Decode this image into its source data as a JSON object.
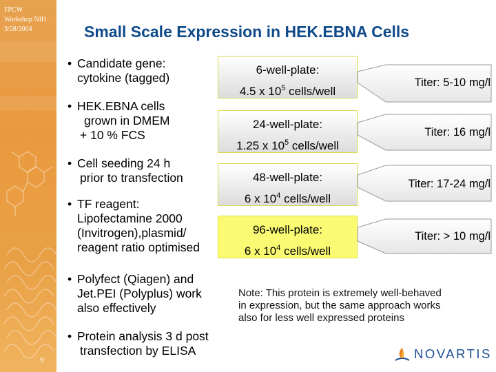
{
  "sidebar": {
    "lines": [
      "FPCW",
      "Workshop NIH",
      "3/28/2004"
    ],
    "page_number": "9"
  },
  "title": "Small Scale Expression in HEK.EBNA Cells",
  "bullets": [
    {
      "lines": [
        "Candidate gene:",
        "cytokine (tagged)"
      ]
    },
    {
      "lines": [
        "HEK.EBNA cells",
        "grown in DMEM",
        "+ 10 % FCS"
      ]
    },
    {
      "lines": [
        "Cell seeding 24 h",
        "prior to transfection"
      ]
    },
    {
      "lines": [
        "TF reagent:",
        "Lipofectamine 2000",
        "(Invitrogen),plasmid/",
        "reagent ratio optimised"
      ]
    },
    {
      "lines": [
        "Polyfect (Qiagen) and",
        "Jet.PEI (Polyplus) work",
        "also effectively"
      ]
    },
    {
      "lines": [
        "Protein analysis 3 d post",
        "transfection by ELISA"
      ]
    }
  ],
  "bullet_glyph": "•",
  "plates": [
    {
      "name": "6-well-plate:",
      "cells_base": "4.5 x 10",
      "cells_exp": "5",
      "cells_unit": " cells/well",
      "titer": "Titer: 5-10 mg/l",
      "style": "gray"
    },
    {
      "name": "24-well-plate:",
      "cells_base": "1.25 x 10",
      "cells_exp": "5",
      "cells_unit": " cells/well",
      "titer": "Titer: 16 mg/l",
      "style": "gray"
    },
    {
      "name": "48-well-plate:",
      "cells_base": "6 x 10",
      "cells_exp": "4",
      "cells_unit": "  cells/well",
      "titer": "Titer: 17-24 mg/l",
      "style": "gray"
    },
    {
      "name": "96-well-plate:",
      "cells_base": "6 x 10",
      "cells_exp": "4",
      "cells_unit": "  cells/well",
      "titer": "Titer: > 10 mg/l",
      "style": "yellow"
    }
  ],
  "note": {
    "lines": [
      "Note: This protein is extremely well-behaved",
      "in expression, but the same approach works",
      "also for less well expressed proteins"
    ]
  },
  "logo": {
    "text": "NOVARTIS",
    "icon": "novartis-flame-icon"
  },
  "colors": {
    "title": "#0f4a8a",
    "sidebar": "#ea9a3e",
    "highlight_plate": "#fbfb73",
    "logo": "#1b4f93"
  }
}
